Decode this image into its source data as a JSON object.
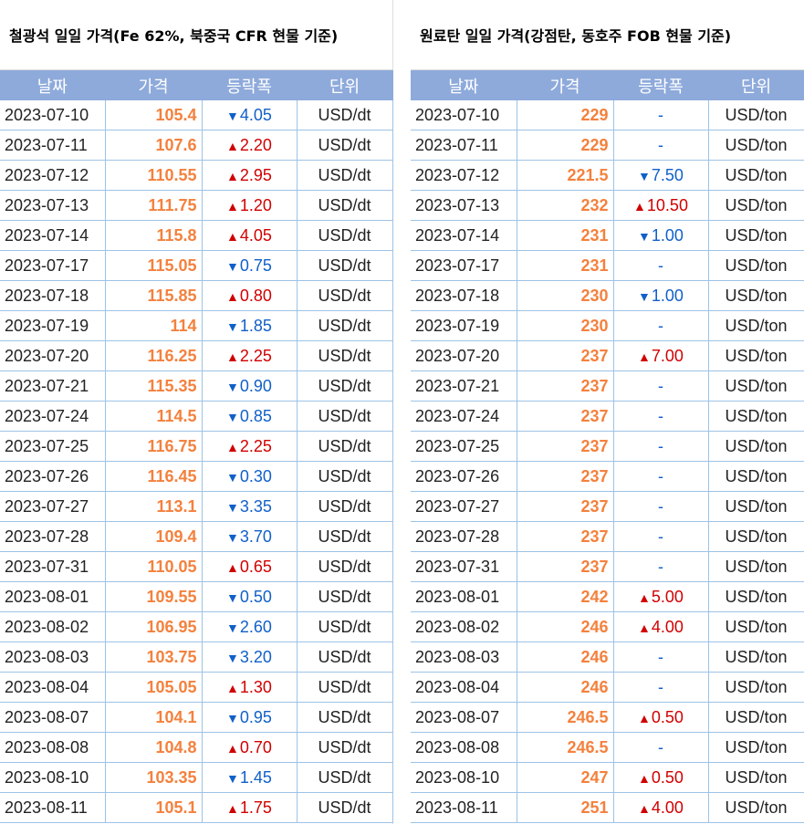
{
  "iron_ore": {
    "title": "철광석 일일 가격(Fe 62%, 북중국 CFR 현물 기준)",
    "headers": [
      "날짜",
      "가격",
      "등락폭",
      "단위"
    ],
    "rows": [
      {
        "date": "2023-07-10",
        "price": "105.4",
        "dir": "down",
        "change": "4.05",
        "unit": "USD/dt"
      },
      {
        "date": "2023-07-11",
        "price": "107.6",
        "dir": "up",
        "change": "2.20",
        "unit": "USD/dt"
      },
      {
        "date": "2023-07-12",
        "price": "110.55",
        "dir": "up",
        "change": "2.95",
        "unit": "USD/dt"
      },
      {
        "date": "2023-07-13",
        "price": "111.75",
        "dir": "up",
        "change": "1.20",
        "unit": "USD/dt"
      },
      {
        "date": "2023-07-14",
        "price": "115.8",
        "dir": "up",
        "change": "4.05",
        "unit": "USD/dt"
      },
      {
        "date": "2023-07-17",
        "price": "115.05",
        "dir": "down",
        "change": "0.75",
        "unit": "USD/dt"
      },
      {
        "date": "2023-07-18",
        "price": "115.85",
        "dir": "up",
        "change": "0.80",
        "unit": "USD/dt"
      },
      {
        "date": "2023-07-19",
        "price": "114",
        "dir": "down",
        "change": "1.85",
        "unit": "USD/dt"
      },
      {
        "date": "2023-07-20",
        "price": "116.25",
        "dir": "up",
        "change": "2.25",
        "unit": "USD/dt"
      },
      {
        "date": "2023-07-21",
        "price": "115.35",
        "dir": "down",
        "change": "0.90",
        "unit": "USD/dt"
      },
      {
        "date": "2023-07-24",
        "price": "114.5",
        "dir": "down",
        "change": "0.85",
        "unit": "USD/dt"
      },
      {
        "date": "2023-07-25",
        "price": "116.75",
        "dir": "up",
        "change": "2.25",
        "unit": "USD/dt"
      },
      {
        "date": "2023-07-26",
        "price": "116.45",
        "dir": "down",
        "change": "0.30",
        "unit": "USD/dt"
      },
      {
        "date": "2023-07-27",
        "price": "113.1",
        "dir": "down",
        "change": "3.35",
        "unit": "USD/dt"
      },
      {
        "date": "2023-07-28",
        "price": "109.4",
        "dir": "down",
        "change": "3.70",
        "unit": "USD/dt"
      },
      {
        "date": "2023-07-31",
        "price": "110.05",
        "dir": "up",
        "change": "0.65",
        "unit": "USD/dt"
      },
      {
        "date": "2023-08-01",
        "price": "109.55",
        "dir": "down",
        "change": "0.50",
        "unit": "USD/dt"
      },
      {
        "date": "2023-08-02",
        "price": "106.95",
        "dir": "down",
        "change": "2.60",
        "unit": "USD/dt"
      },
      {
        "date": "2023-08-03",
        "price": "103.75",
        "dir": "down",
        "change": "3.20",
        "unit": "USD/dt"
      },
      {
        "date": "2023-08-04",
        "price": "105.05",
        "dir": "up",
        "change": "1.30",
        "unit": "USD/dt"
      },
      {
        "date": "2023-08-07",
        "price": "104.1",
        "dir": "down",
        "change": "0.95",
        "unit": "USD/dt"
      },
      {
        "date": "2023-08-08",
        "price": "104.8",
        "dir": "up",
        "change": "0.70",
        "unit": "USD/dt"
      },
      {
        "date": "2023-08-10",
        "price": "103.35",
        "dir": "down",
        "change": "1.45",
        "unit": "USD/dt"
      },
      {
        "date": "2023-08-11",
        "price": "105.1",
        "dir": "up",
        "change": "1.75",
        "unit": "USD/dt"
      }
    ]
  },
  "coking_coal": {
    "title": "원료탄 일일 가격(강점탄, 동호주 FOB 현물 기준)",
    "headers": [
      "날짜",
      "가격",
      "등락폭",
      "단위"
    ],
    "rows": [
      {
        "date": "2023-07-10",
        "price": "229",
        "dir": "flat",
        "change": "-",
        "unit": "USD/ton"
      },
      {
        "date": "2023-07-11",
        "price": "229",
        "dir": "flat",
        "change": "-",
        "unit": "USD/ton"
      },
      {
        "date": "2023-07-12",
        "price": "221.5",
        "dir": "down",
        "change": "7.50",
        "unit": "USD/ton"
      },
      {
        "date": "2023-07-13",
        "price": "232",
        "dir": "up",
        "change": "10.50",
        "unit": "USD/ton"
      },
      {
        "date": "2023-07-14",
        "price": "231",
        "dir": "down",
        "change": "1.00",
        "unit": "USD/ton"
      },
      {
        "date": "2023-07-17",
        "price": "231",
        "dir": "flat",
        "change": "-",
        "unit": "USD/ton"
      },
      {
        "date": "2023-07-18",
        "price": "230",
        "dir": "down",
        "change": "1.00",
        "unit": "USD/ton"
      },
      {
        "date": "2023-07-19",
        "price": "230",
        "dir": "flat",
        "change": "-",
        "unit": "USD/ton"
      },
      {
        "date": "2023-07-20",
        "price": "237",
        "dir": "up",
        "change": "7.00",
        "unit": "USD/ton"
      },
      {
        "date": "2023-07-21",
        "price": "237",
        "dir": "flat",
        "change": "-",
        "unit": "USD/ton"
      },
      {
        "date": "2023-07-24",
        "price": "237",
        "dir": "flat",
        "change": "-",
        "unit": "USD/ton"
      },
      {
        "date": "2023-07-25",
        "price": "237",
        "dir": "flat",
        "change": "-",
        "unit": "USD/ton"
      },
      {
        "date": "2023-07-26",
        "price": "237",
        "dir": "flat",
        "change": "-",
        "unit": "USD/ton"
      },
      {
        "date": "2023-07-27",
        "price": "237",
        "dir": "flat",
        "change": "-",
        "unit": "USD/ton"
      },
      {
        "date": "2023-07-28",
        "price": "237",
        "dir": "flat",
        "change": "-",
        "unit": "USD/ton"
      },
      {
        "date": "2023-07-31",
        "price": "237",
        "dir": "flat",
        "change": "-",
        "unit": "USD/ton"
      },
      {
        "date": "2023-08-01",
        "price": "242",
        "dir": "up",
        "change": "5.00",
        "unit": "USD/ton"
      },
      {
        "date": "2023-08-02",
        "price": "246",
        "dir": "up",
        "change": "4.00",
        "unit": "USD/ton"
      },
      {
        "date": "2023-08-03",
        "price": "246",
        "dir": "flat",
        "change": "-",
        "unit": "USD/ton"
      },
      {
        "date": "2023-08-04",
        "price": "246",
        "dir": "flat",
        "change": "-",
        "unit": "USD/ton"
      },
      {
        "date": "2023-08-07",
        "price": "246.5",
        "dir": "up",
        "change": "0.50",
        "unit": "USD/ton"
      },
      {
        "date": "2023-08-08",
        "price": "246.5",
        "dir": "flat",
        "change": "-",
        "unit": "USD/ton"
      },
      {
        "date": "2023-08-10",
        "price": "247",
        "dir": "up",
        "change": "0.50",
        "unit": "USD/ton"
      },
      {
        "date": "2023-08-11",
        "price": "251",
        "dir": "up",
        "change": "4.00",
        "unit": "USD/ton"
      }
    ]
  },
  "colors": {
    "header_bg": "#8eaadb",
    "price": "#f4813d",
    "up": "#d10000",
    "down": "#1160c9",
    "grid": "#9dc3e6"
  },
  "icons": {
    "up": "triangle-up-icon",
    "down": "triangle-down-icon"
  }
}
